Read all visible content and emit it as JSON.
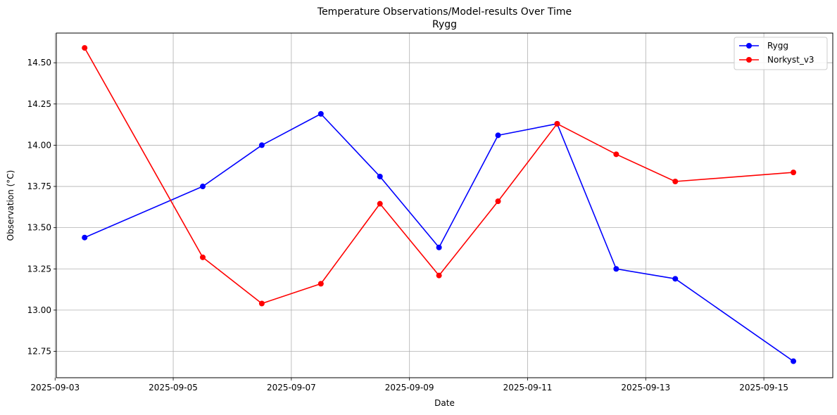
{
  "chart_data": {
    "type": "line",
    "title": "Temperature Observations/Model-results Over Time",
    "subtitle": "Rygg",
    "xlabel": "Date",
    "ylabel": "Observation (°C)",
    "x": [
      "2025-09-03 12:00",
      "2025-09-04 12:00",
      "2025-09-05 12:00",
      "2025-09-06 12:00",
      "2025-09-07 12:00",
      "2025-09-08 12:00",
      "2025-09-09 12:00",
      "2025-09-10 12:00",
      "2025-09-11 12:00",
      "2025-09-12 12:00",
      "2025-09-13 12:00",
      "2025-09-15 12:00"
    ],
    "xlim": [
      "2025-09-03 00:30",
      "2025-09-16 04:00"
    ],
    "ylim": [
      12.59,
      14.68
    ],
    "x_ticks": [
      "2025-09-03",
      "2025-09-05",
      "2025-09-07",
      "2025-09-09",
      "2025-09-11",
      "2025-09-13",
      "2025-09-15"
    ],
    "y_ticks": [
      "12.75",
      "13.00",
      "13.25",
      "13.50",
      "13.75",
      "14.00",
      "14.25",
      "14.50"
    ],
    "grid": true,
    "legend_position": "top-right",
    "series": [
      {
        "name": "Rygg",
        "color": "#0000ff",
        "marker": "circle",
        "values": [
          13.44,
          null,
          13.75,
          14.0,
          14.19,
          13.81,
          13.38,
          14.06,
          14.13,
          13.25,
          13.19,
          12.69
        ]
      },
      {
        "name": "Norkyst_v3",
        "color": "#ff0000",
        "marker": "circle",
        "values": [
          14.59,
          null,
          13.32,
          13.04,
          13.16,
          13.645,
          13.21,
          13.66,
          14.13,
          13.945,
          13.78,
          13.835
        ]
      }
    ]
  }
}
